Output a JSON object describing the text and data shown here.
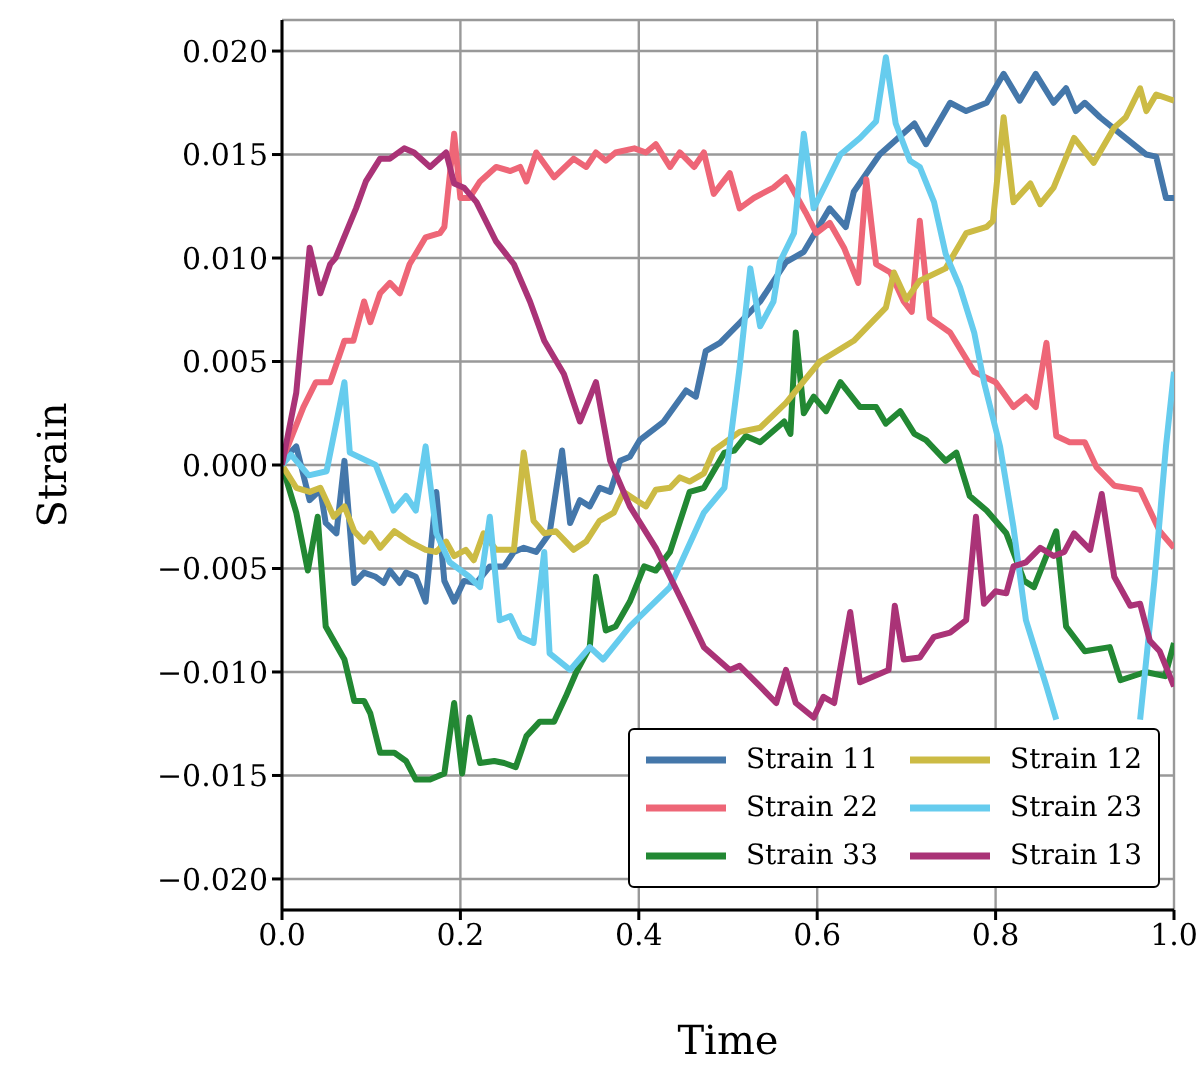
{
  "chart_data": {
    "type": "line",
    "xlabel": "Time",
    "ylabel": "Strain",
    "xlim": [
      0,
      1
    ],
    "xticks": [
      {
        "value": 0,
        "label": "0.0"
      },
      {
        "value": 0.2,
        "label": "0.2"
      },
      {
        "value": 0.4,
        "label": "0.4"
      },
      {
        "value": 0.6,
        "label": "0.6"
      },
      {
        "value": 0.8,
        "label": "0.8"
      },
      {
        "value": 1,
        "label": "1.0"
      }
    ],
    "ylim": [
      -0.0215,
      0.0215
    ],
    "yticks": [
      {
        "value": -0.02,
        "label": "−0.020"
      },
      {
        "value": -0.015,
        "label": "−0.015"
      },
      {
        "value": -0.01,
        "label": "−0.010"
      },
      {
        "value": -0.005,
        "label": "−0.005"
      },
      {
        "value": 0,
        "label": "0.000"
      },
      {
        "value": 0.005,
        "label": "0.005"
      },
      {
        "value": 0.01,
        "label": "0.010"
      },
      {
        "value": 0.015,
        "label": "0.015"
      },
      {
        "value": 0.02,
        "label": "0.020"
      }
    ],
    "grid": true,
    "legend": "bottom right",
    "marker": "none",
    "line_style": "solid",
    "series": [
      {
        "name": "Strain 11",
        "color": "#4477aa",
        "x": [
          0,
          0.016,
          0.031,
          0.043,
          0.049,
          0.061,
          0.07,
          0.081,
          0.092,
          0.105,
          0.114,
          0.121,
          0.132,
          0.139,
          0.15,
          0.161,
          0.173,
          0.182,
          0.193,
          0.204,
          0.218,
          0.233,
          0.249,
          0.26,
          0.271,
          0.285,
          0.3,
          0.314,
          0.323,
          0.334,
          0.345,
          0.356,
          0.368,
          0.379,
          0.39,
          0.401,
          0.428,
          0.453,
          0.464,
          0.475,
          0.491,
          0.514,
          0.536,
          0.565,
          0.585,
          0.614,
          0.632,
          0.641,
          0.67,
          0.709,
          0.722,
          0.749,
          0.767,
          0.79,
          0.809,
          0.827,
          0.845,
          0.865,
          0.879,
          0.89,
          0.9,
          0.917,
          0.94,
          0.969,
          0.98,
          0.991,
          1
        ],
        "values": [
          0.0002,
          0.0009,
          -0.0017,
          -0.0012,
          -0.0028,
          -0.0033,
          0.0002,
          -0.0057,
          -0.0052,
          -0.0054,
          -0.0057,
          -0.0051,
          -0.0057,
          -0.0052,
          -0.0054,
          -0.0066,
          -0.0013,
          -0.0056,
          -0.0066,
          -0.0056,
          -0.0057,
          -0.0049,
          -0.0049,
          -0.0042,
          -0.004,
          -0.0042,
          -0.0033,
          0.0007,
          -0.0028,
          -0.0017,
          -0.002,
          -0.0011,
          -0.0013,
          0.0002,
          0.0004,
          0.0012,
          0.0021,
          0.0036,
          0.0033,
          0.0055,
          0.0059,
          0.0069,
          0.0079,
          0.0098,
          0.0103,
          0.0124,
          0.0115,
          0.0132,
          0.015,
          0.0165,
          0.0155,
          0.0175,
          0.0171,
          0.0175,
          0.0189,
          0.0176,
          0.0189,
          0.0175,
          0.0182,
          0.0171,
          0.0175,
          0.0168,
          0.016,
          0.015,
          0.0149,
          0.0129,
          0.0129
        ]
      },
      {
        "name": "Strain 22",
        "color": "#ee6677",
        "x": [
          0,
          0.024,
          0.038,
          0.054,
          0.07,
          0.08,
          0.092,
          0.099,
          0.11,
          0.121,
          0.132,
          0.143,
          0.161,
          0.177,
          0.182,
          0.193,
          0.2,
          0.21,
          0.222,
          0.24,
          0.256,
          0.267,
          0.274,
          0.285,
          0.305,
          0.327,
          0.341,
          0.352,
          0.363,
          0.374,
          0.395,
          0.408,
          0.419,
          0.435,
          0.446,
          0.462,
          0.473,
          0.484,
          0.502,
          0.513,
          0.529,
          0.551,
          0.565,
          0.587,
          0.599,
          0.614,
          0.63,
          0.646,
          0.655,
          0.666,
          0.682,
          0.697,
          0.706,
          0.715,
          0.726,
          0.749,
          0.776,
          0.8,
          0.82,
          0.834,
          0.845,
          0.857,
          0.868,
          0.883,
          0.9,
          0.913,
          0.933,
          0.962,
          0.984,
          1
        ],
        "values": [
          0.0002,
          0.0028,
          0.004,
          0.004,
          0.006,
          0.006,
          0.0079,
          0.0069,
          0.0083,
          0.0088,
          0.0083,
          0.0097,
          0.011,
          0.0112,
          0.0115,
          0.016,
          0.0129,
          0.0129,
          0.0137,
          0.0144,
          0.0142,
          0.0144,
          0.0137,
          0.0151,
          0.0139,
          0.0148,
          0.0144,
          0.0151,
          0.0147,
          0.0151,
          0.0153,
          0.0151,
          0.0155,
          0.0144,
          0.0151,
          0.0144,
          0.0151,
          0.0131,
          0.0141,
          0.0124,
          0.0129,
          0.0134,
          0.0139,
          0.0122,
          0.0112,
          0.0117,
          0.0105,
          0.0088,
          0.0138,
          0.0097,
          0.0093,
          0.0079,
          0.0074,
          0.0118,
          0.0071,
          0.0064,
          0.0045,
          0.004,
          0.0028,
          0.0033,
          0.0028,
          0.0059,
          0.0014,
          0.0011,
          0.0011,
          -0.0001,
          -0.001,
          -0.0012,
          -0.0032,
          -0.004
        ]
      },
      {
        "name": "Strain 33",
        "color": "#228833",
        "x": [
          0,
          0.016,
          0.029,
          0.04,
          0.049,
          0.07,
          0.081,
          0.092,
          0.099,
          0.11,
          0.126,
          0.139,
          0.15,
          0.166,
          0.182,
          0.193,
          0.202,
          0.21,
          0.222,
          0.238,
          0.249,
          0.262,
          0.274,
          0.289,
          0.305,
          0.318,
          0.33,
          0.345,
          0.352,
          0.363,
          0.374,
          0.39,
          0.406,
          0.419,
          0.435,
          0.457,
          0.473,
          0.496,
          0.507,
          0.52,
          0.536,
          0.563,
          0.57,
          0.576,
          0.585,
          0.596,
          0.61,
          0.626,
          0.648,
          0.666,
          0.677,
          0.693,
          0.709,
          0.722,
          0.744,
          0.756,
          0.771,
          0.79,
          0.812,
          0.832,
          0.843,
          0.868,
          0.879,
          0.9,
          0.928,
          0.94,
          0.968,
          0.99,
          1
        ],
        "values": [
          0,
          -0.0023,
          -0.0051,
          -0.0025,
          -0.0078,
          -0.0094,
          -0.0114,
          -0.0114,
          -0.012,
          -0.0139,
          -0.0139,
          -0.0143,
          -0.0152,
          -0.0152,
          -0.0149,
          -0.0115,
          -0.0149,
          -0.0122,
          -0.0144,
          -0.0143,
          -0.0144,
          -0.0146,
          -0.0131,
          -0.0124,
          -0.0124,
          -0.0112,
          -0.01,
          -0.0088,
          -0.0054,
          -0.008,
          -0.0078,
          -0.0066,
          -0.0049,
          -0.0051,
          -0.0042,
          -0.0013,
          -0.0011,
          0.0006,
          0.0007,
          0.0014,
          0.0011,
          0.0021,
          0.0015,
          0.0064,
          0.0025,
          0.0033,
          0.0026,
          0.004,
          0.0028,
          0.0028,
          0.002,
          0.0026,
          0.0015,
          0.0012,
          0.0002,
          0.0006,
          -0.0015,
          -0.0022,
          -0.0033,
          -0.0056,
          -0.0059,
          -0.0032,
          -0.0078,
          -0.009,
          -0.0088,
          -0.0104,
          -0.01,
          -0.0102,
          -0.0086
        ]
      },
      {
        "name": "Strain 12",
        "color": "#ccbb44",
        "x": [
          0,
          0.016,
          0.031,
          0.043,
          0.058,
          0.07,
          0.081,
          0.092,
          0.099,
          0.11,
          0.126,
          0.143,
          0.161,
          0.173,
          0.184,
          0.193,
          0.206,
          0.215,
          0.226,
          0.24,
          0.26,
          0.271,
          0.282,
          0.294,
          0.307,
          0.327,
          0.341,
          0.356,
          0.372,
          0.383,
          0.397,
          0.408,
          0.419,
          0.435,
          0.446,
          0.457,
          0.473,
          0.484,
          0.513,
          0.536,
          0.565,
          0.603,
          0.641,
          0.677,
          0.686,
          0.7,
          0.715,
          0.744,
          0.767,
          0.79,
          0.797,
          0.809,
          0.82,
          0.839,
          0.85,
          0.865,
          0.888,
          0.91,
          0.933,
          0.946,
          0.962,
          0.969,
          0.98,
          1
        ],
        "values": [
          0,
          -0.0011,
          -0.0013,
          -0.0011,
          -0.0025,
          -0.002,
          -0.0032,
          -0.0037,
          -0.0033,
          -0.004,
          -0.0032,
          -0.0037,
          -0.0041,
          -0.0042,
          -0.0037,
          -0.0044,
          -0.0041,
          -0.0046,
          -0.0033,
          -0.0041,
          -0.0041,
          0.0006,
          -0.0027,
          -0.0033,
          -0.0032,
          -0.0041,
          -0.0037,
          -0.0027,
          -0.0023,
          -0.0013,
          -0.0017,
          -0.002,
          -0.0012,
          -0.0011,
          -0.0006,
          -0.0008,
          -0.0004,
          0.0007,
          0.0016,
          0.0018,
          0.003,
          0.005,
          0.006,
          0.0076,
          0.0093,
          0.008,
          0.0089,
          0.0095,
          0.0112,
          0.0115,
          0.0118,
          0.0168,
          0.0127,
          0.0136,
          0.0126,
          0.0134,
          0.0158,
          0.0146,
          0.0163,
          0.0168,
          0.0182,
          0.0171,
          0.0179,
          0.0176
        ]
      },
      {
        "name": "Strain 23",
        "color": "#66ccee",
        "x": [
          0,
          0.01,
          0.03,
          0.05,
          0.07,
          0.076,
          0.105,
          0.125,
          0.139,
          0.15,
          0.161,
          0.173,
          0.188,
          0.21,
          0.222,
          0.233,
          0.244,
          0.256,
          0.267,
          0.282,
          0.294,
          0.3,
          0.323,
          0.345,
          0.36,
          0.39,
          0.435,
          0.473,
          0.496,
          0.513,
          0.525,
          0.536,
          0.551,
          0.558,
          0.574,
          0.585,
          0.596,
          0.61,
          0.626,
          0.648,
          0.666,
          0.677,
          0.688,
          0.704,
          0.715,
          0.731,
          0.744,
          0.76,
          0.776,
          0.787,
          0.805,
          0.82,
          0.834,
          0.857,
          0.868,
          0.9,
          0.94,
          0.962,
          0.978,
          0.991,
          1
        ],
        "values": [
          0,
          0.0005,
          -0.0005,
          -0.0003,
          0.004,
          0.0006,
          0,
          -0.0022,
          -0.0015,
          -0.0022,
          0.0009,
          -0.0033,
          -0.0047,
          -0.0054,
          -0.0059,
          -0.0025,
          -0.0075,
          -0.0073,
          -0.0083,
          -0.0086,
          -0.0042,
          -0.0091,
          -0.0099,
          -0.0088,
          -0.0094,
          -0.0078,
          -0.0059,
          -0.0023,
          -0.0011,
          0.0047,
          0.0095,
          0.0067,
          0.0079,
          0.0098,
          0.0112,
          0.016,
          0.0124,
          0.0136,
          0.015,
          0.0158,
          0.0166,
          0.0197,
          0.0165,
          0.0147,
          0.0144,
          0.0127,
          0.0102,
          0.0086,
          0.0064,
          0.004,
          0.0009,
          -0.003,
          -0.0075,
          -0.0107,
          -0.0123,
          null,
          null,
          -0.0123,
          -0.0056,
          0.0009,
          0.0045
        ]
      },
      {
        "name": "Strain 13",
        "color": "#aa3377",
        "x": [
          0,
          0.016,
          0.031,
          0.043,
          0.054,
          0.06,
          0.083,
          0.094,
          0.11,
          0.121,
          0.137,
          0.148,
          0.166,
          0.184,
          0.193,
          0.204,
          0.218,
          0.24,
          0.26,
          0.278,
          0.294,
          0.316,
          0.334,
          0.352,
          0.368,
          0.39,
          0.419,
          0.451,
          0.473,
          0.502,
          0.513,
          0.536,
          0.554,
          0.565,
          0.576,
          0.596,
          0.607,
          0.619,
          0.637,
          0.648,
          0.68,
          0.687,
          0.697,
          0.715,
          0.731,
          0.749,
          0.767,
          0.778,
          0.787,
          0.8,
          0.812,
          0.82,
          0.834,
          0.85,
          0.865,
          0.877,
          0.888,
          0.906,
          0.919,
          0.933,
          0.951,
          0.962,
          0.973,
          0.984,
          1
        ],
        "values": [
          0,
          0.0035,
          0.0105,
          0.0083,
          0.0097,
          0.01,
          0.0124,
          0.0137,
          0.0148,
          0.0148,
          0.0153,
          0.0151,
          0.0144,
          0.0151,
          0.0136,
          0.0134,
          0.0127,
          0.0108,
          0.0097,
          0.0079,
          0.006,
          0.0044,
          0.0021,
          0.004,
          0.0002,
          -0.002,
          -0.004,
          -0.0068,
          -0.0088,
          -0.0099,
          -0.0097,
          -0.0107,
          -0.0115,
          -0.0099,
          -0.0115,
          -0.0122,
          -0.0112,
          -0.0115,
          -0.0071,
          -0.0105,
          -0.0099,
          -0.0068,
          -0.0094,
          -0.0093,
          -0.0083,
          -0.0081,
          -0.0075,
          -0.0025,
          -0.0067,
          -0.0061,
          -0.0062,
          -0.0049,
          -0.0047,
          -0.004,
          -0.0044,
          -0.0042,
          -0.0033,
          -0.0041,
          -0.0014,
          -0.0054,
          -0.0068,
          -0.0067,
          -0.0085,
          -0.009,
          -0.0107
        ]
      }
    ]
  }
}
